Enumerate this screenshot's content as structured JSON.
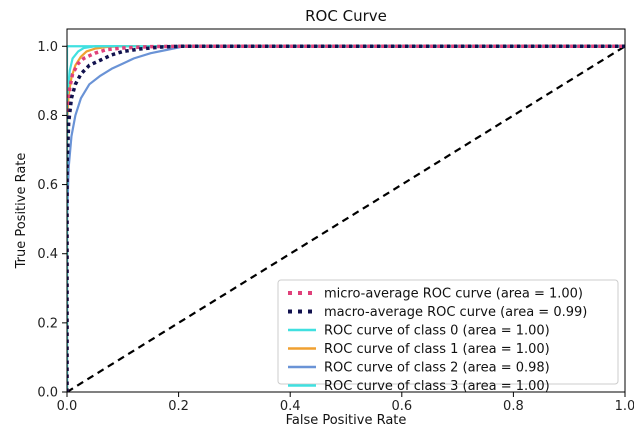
{
  "chart_data": {
    "type": "line",
    "title": "ROC Curve",
    "xlabel": "False Positive Rate",
    "ylabel": "True Positive Rate",
    "xlim": [
      0.0,
      1.0
    ],
    "ylim": [
      0.0,
      1.05
    ],
    "x_ticks": [
      "0.0",
      "0.2",
      "0.4",
      "0.6",
      "0.8",
      "1.0"
    ],
    "y_ticks": [
      "0.0",
      "0.2",
      "0.4",
      "0.6",
      "0.8",
      "1.0"
    ],
    "grid": false,
    "legend_position": "lower right",
    "series": [
      {
        "name": "micro-average ROC curve (area = 1.00)",
        "color": "#e0407a",
        "style": "dotted",
        "x": [
          0.0,
          0.0,
          0.002,
          0.005,
          0.01,
          0.02,
          0.03,
          0.05,
          0.07,
          0.1,
          0.15,
          0.2,
          1.0
        ],
        "y": [
          0.0,
          0.7,
          0.82,
          0.88,
          0.92,
          0.95,
          0.965,
          0.98,
          0.99,
          0.995,
          0.999,
          1.0,
          1.0
        ]
      },
      {
        "name": "macro-average ROC curve (area = 0.99)",
        "color": "#11114e",
        "style": "dotted",
        "x": [
          0.0,
          0.0,
          0.003,
          0.008,
          0.015,
          0.025,
          0.04,
          0.06,
          0.08,
          0.1,
          0.13,
          0.17,
          0.2,
          1.0
        ],
        "y": [
          0.0,
          0.65,
          0.78,
          0.85,
          0.89,
          0.92,
          0.945,
          0.96,
          0.975,
          0.985,
          0.992,
          0.998,
          1.0,
          1.0
        ]
      },
      {
        "name": "ROC curve of class 0 (area = 1.00)",
        "color": "#40e0e0",
        "style": "solid",
        "x": [
          0.0,
          0.0,
          1.0
        ],
        "y": [
          0.0,
          1.0,
          1.0
        ]
      },
      {
        "name": "ROC curve of class 1 (area = 1.00)",
        "color": "#f0a030",
        "style": "solid",
        "x": [
          0.0,
          0.0,
          0.003,
          0.008,
          0.015,
          0.025,
          0.035,
          0.05,
          0.07,
          0.1,
          1.0
        ],
        "y": [
          0.0,
          0.78,
          0.86,
          0.91,
          0.945,
          0.97,
          0.985,
          0.993,
          0.998,
          1.0,
          1.0
        ]
      },
      {
        "name": "ROC curve of class 2 (area = 0.98)",
        "color": "#6a93d6",
        "style": "solid",
        "x": [
          0.0,
          0.0,
          0.003,
          0.008,
          0.015,
          0.025,
          0.04,
          0.06,
          0.08,
          0.1,
          0.12,
          0.15,
          0.18,
          0.21,
          1.0
        ],
        "y": [
          0.0,
          0.5,
          0.65,
          0.74,
          0.8,
          0.85,
          0.89,
          0.915,
          0.935,
          0.95,
          0.965,
          0.98,
          0.99,
          1.0,
          1.0
        ]
      },
      {
        "name": "ROC curve of class 3 (area = 1.00)",
        "color": "#40e0e0",
        "style": "solid",
        "x": [
          0.0,
          0.0,
          0.005,
          0.01,
          0.02,
          0.03,
          0.05,
          1.0
        ],
        "y": [
          0.0,
          0.85,
          0.93,
          0.965,
          0.985,
          0.995,
          1.0,
          1.0
        ]
      }
    ],
    "reference_line": {
      "color": "#000000",
      "style": "dashed",
      "x": [
        0.0,
        1.0
      ],
      "y": [
        0.0,
        1.0
      ]
    }
  }
}
